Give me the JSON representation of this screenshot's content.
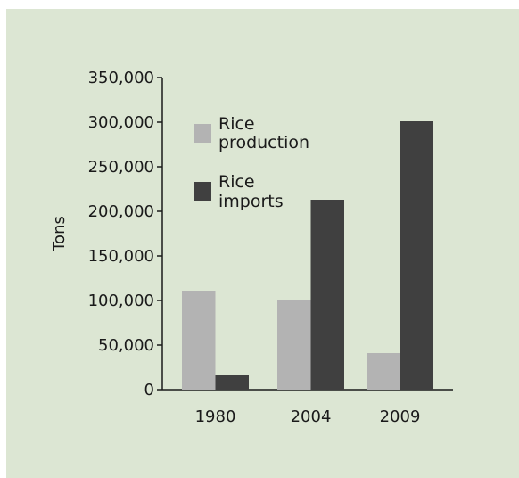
{
  "chart_data": {
    "type": "bar",
    "title": "",
    "xlabel": "",
    "ylabel": "Tons",
    "ylim": [
      0,
      350000
    ],
    "yticks": [
      0,
      50000,
      100000,
      150000,
      200000,
      250000,
      300000,
      350000
    ],
    "ytick_labels": [
      "0",
      "50,000",
      "100,000",
      "150,000",
      "200,000",
      "250,000",
      "300,000",
      "350,000"
    ],
    "categories": [
      "1980",
      "2004",
      "2009"
    ],
    "series": [
      {
        "name": "Rice production",
        "legend_lines": [
          "Rice",
          "production"
        ],
        "color": "#b3b3b3",
        "values": [
          111000,
          101000,
          41000
        ]
      },
      {
        "name": "Rice imports",
        "legend_lines": [
          "Rice",
          "imports"
        ],
        "color": "#404040",
        "values": [
          17000,
          213000,
          301000
        ]
      }
    ],
    "legend_position": "top-left",
    "grid": false,
    "background": "#dce6d3"
  }
}
